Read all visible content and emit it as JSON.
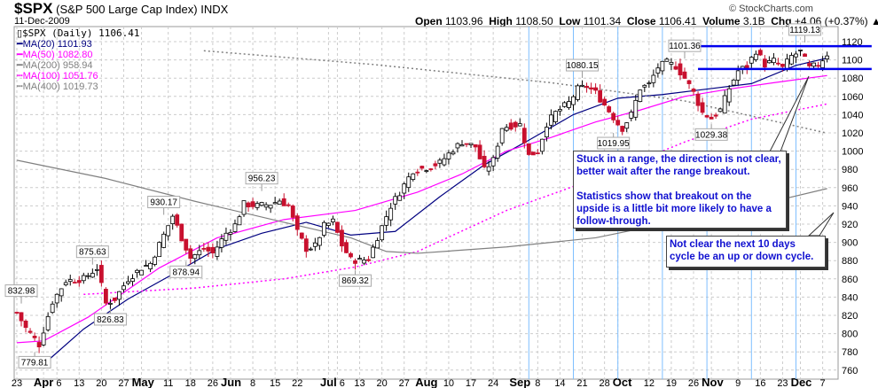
{
  "header": {
    "symbol": "$SPX",
    "name": "(S&P 500 Large Cap Index)",
    "exchange": "INDX",
    "date": "11-Dec-2009",
    "brand": "© StockCharts.com",
    "open_label": "Open",
    "open": "1103.96",
    "high_label": "High",
    "high": "1108.50",
    "low_label": "Low",
    "low": "1101.34",
    "close_label": "Close",
    "close": "1106.41",
    "volume_label": "Volume",
    "volume": "3.1B",
    "chg_label": "Chg",
    "chg": "+4.06 (+0.37%)",
    "chg_arrow": "▲"
  },
  "legend": [
    {
      "label": "$SPX (Daily) 1106.41",
      "color": "#000000"
    },
    {
      "label": "MA(20) 1101.93",
      "color": "#000080"
    },
    {
      "label": "MA(50) 1082.80",
      "color": "#ff00ff"
    },
    {
      "label": "MA(200) 958.94",
      "color": "#808080"
    },
    {
      "label": "MA(100) 1051.76",
      "color": "#ff00ff"
    },
    {
      "label": "MA(400) 1019.73",
      "color": "#808080"
    }
  ],
  "notes": {
    "range": [
      "Stuck in a range, the direction is not clear,",
      "better wait after the range breakout.",
      "",
      "Statistics show that breakout on the",
      "upside is a little bit more likely to have a",
      "follow-through."
    ],
    "cycle": [
      "Not clear the next 10 days",
      "cycle be an up or down cycle."
    ]
  },
  "chart_data": {
    "type": "candlestick",
    "title": "$SPX (Daily)",
    "ylim": [
      750,
      1130
    ],
    "yticks": [
      760,
      780,
      800,
      820,
      840,
      860,
      880,
      900,
      920,
      940,
      960,
      980,
      1000,
      1020,
      1040,
      1060,
      1080,
      1100,
      1120
    ],
    "xticks": [
      [
        0,
        "23",
        false
      ],
      [
        6,
        "Apr",
        true
      ],
      [
        9,
        "6",
        false
      ],
      [
        14,
        "13",
        false
      ],
      [
        19,
        "20",
        false
      ],
      [
        24,
        "27",
        false
      ],
      [
        28,
        "May",
        true
      ],
      [
        34,
        "11",
        false
      ],
      [
        39,
        "18",
        false
      ],
      [
        44,
        "26",
        false
      ],
      [
        48,
        "Jun",
        true
      ],
      [
        53,
        "8",
        false
      ],
      [
        58,
        "15",
        false
      ],
      [
        63,
        "22",
        false
      ],
      [
        70,
        "Jul",
        true
      ],
      [
        72,
        "6",
        false
      ],
      [
        77,
        "13",
        false
      ],
      [
        82,
        "20",
        false
      ],
      [
        87,
        "27",
        false
      ],
      [
        92,
        "Aug",
        true
      ],
      [
        97,
        "10",
        false
      ],
      [
        102,
        "17",
        false
      ],
      [
        107,
        "24",
        false
      ],
      [
        113,
        "Sep",
        true
      ],
      [
        117,
        "8",
        false
      ],
      [
        122,
        "14",
        false
      ],
      [
        127,
        "21",
        false
      ],
      [
        132,
        "28",
        false
      ],
      [
        135,
        "Oct",
        true
      ],
      [
        142,
        "12",
        false
      ],
      [
        147,
        "19",
        false
      ],
      [
        152,
        "26",
        false
      ],
      [
        156,
        "Nov",
        true
      ],
      [
        162,
        "9",
        false
      ],
      [
        167,
        "16",
        false
      ],
      [
        172,
        "23",
        false
      ],
      [
        176,
        "Dec",
        true
      ],
      [
        181,
        "7",
        false
      ]
    ],
    "close_anchors": [
      [
        0,
        823
      ],
      [
        2,
        806
      ],
      [
        5,
        788
      ],
      [
        8,
        835
      ],
      [
        11,
        858
      ],
      [
        15,
        860
      ],
      [
        18,
        872
      ],
      [
        20,
        833
      ],
      [
        22,
        838
      ],
      [
        25,
        860
      ],
      [
        28,
        872
      ],
      [
        30,
        877
      ],
      [
        33,
        908
      ],
      [
        35,
        929
      ],
      [
        37,
        905
      ],
      [
        39,
        883
      ],
      [
        42,
        893
      ],
      [
        44,
        888
      ],
      [
        47,
        910
      ],
      [
        49,
        919
      ],
      [
        51,
        942
      ],
      [
        54,
        940
      ],
      [
        57,
        942
      ],
      [
        59,
        946
      ],
      [
        61,
        940
      ],
      [
        63,
        911
      ],
      [
        65,
        893
      ],
      [
        67,
        896
      ],
      [
        69,
        918
      ],
      [
        71,
        923
      ],
      [
        73,
        897
      ],
      [
        75,
        881
      ],
      [
        77,
        880
      ],
      [
        79,
        882
      ],
      [
        81,
        906
      ],
      [
        84,
        940
      ],
      [
        86,
        955
      ],
      [
        89,
        979
      ],
      [
        92,
        982
      ],
      [
        95,
        987
      ],
      [
        98,
        1002
      ],
      [
        100,
        1010
      ],
      [
        103,
        1005
      ],
      [
        105,
        979
      ],
      [
        107,
        990
      ],
      [
        109,
        1026
      ],
      [
        111,
        1028
      ],
      [
        113,
        1029
      ],
      [
        115,
        995
      ],
      [
        117,
        1000
      ],
      [
        119,
        1030
      ],
      [
        121,
        1042
      ],
      [
        124,
        1053
      ],
      [
        126,
        1068
      ],
      [
        128,
        1071
      ],
      [
        130,
        1064
      ],
      [
        133,
        1044
      ],
      [
        135,
        1030
      ],
      [
        136,
        1025
      ],
      [
        138,
        1040
      ],
      [
        140,
        1069
      ],
      [
        142,
        1073
      ],
      [
        144,
        1092
      ],
      [
        146,
        1097
      ],
      [
        148,
        1093
      ],
      [
        150,
        1080
      ],
      [
        152,
        1064
      ],
      [
        154,
        1042
      ],
      [
        156,
        1036
      ],
      [
        158,
        1045
      ],
      [
        160,
        1069
      ],
      [
        162,
        1088
      ],
      [
        164,
        1093
      ],
      [
        166,
        1110
      ],
      [
        168,
        1095
      ],
      [
        170,
        1099
      ],
      [
        172,
        1091
      ],
      [
        174,
        1104
      ],
      [
        176,
        1109
      ],
      [
        178,
        1091
      ],
      [
        180,
        1095
      ],
      [
        182,
        1106.41
      ]
    ],
    "series": [
      {
        "name": "MA(20)",
        "color": "#000080",
        "dash": false,
        "points": [
          [
            5,
            762
          ],
          [
            15,
            805
          ],
          [
            25,
            838
          ],
          [
            35,
            865
          ],
          [
            45,
            893
          ],
          [
            55,
            910
          ],
          [
            65,
            922
          ],
          [
            75,
            908
          ],
          [
            85,
            912
          ],
          [
            95,
            950
          ],
          [
            105,
            985
          ],
          [
            115,
            1012
          ],
          [
            125,
            1040
          ],
          [
            135,
            1058
          ],
          [
            145,
            1062
          ],
          [
            155,
            1068
          ],
          [
            165,
            1074
          ],
          [
            175,
            1094
          ],
          [
            182,
            1101.93
          ]
        ]
      },
      {
        "name": "MA(50)",
        "color": "#ff00ff",
        "dash": false,
        "points": [
          [
            0,
            790
          ],
          [
            6,
            792
          ],
          [
            16,
            818
          ],
          [
            32,
            872
          ],
          [
            45,
            905
          ],
          [
            60,
            925
          ],
          [
            76,
            935
          ],
          [
            90,
            955
          ],
          [
            100,
            975
          ],
          [
            110,
            1000
          ],
          [
            120,
            1015
          ],
          [
            130,
            1032
          ],
          [
            140,
            1045
          ],
          [
            150,
            1060
          ],
          [
            160,
            1068
          ],
          [
            170,
            1075
          ],
          [
            182,
            1082.8
          ]
        ]
      },
      {
        "name": "MA(100)",
        "color": "#ff00ff",
        "dash": true,
        "points": [
          [
            15,
            843
          ],
          [
            40,
            850
          ],
          [
            60,
            860
          ],
          [
            76,
            873
          ],
          [
            90,
            890
          ],
          [
            110,
            935
          ],
          [
            130,
            970
          ],
          [
            150,
            1010
          ],
          [
            165,
            1035
          ],
          [
            182,
            1051.76
          ]
        ]
      },
      {
        "name": "MA(200)",
        "color": "#808080",
        "dash": false,
        "points": [
          [
            0,
            990
          ],
          [
            20,
            970
          ],
          [
            40,
            945
          ],
          [
            60,
            922
          ],
          [
            75,
            905
          ],
          [
            83,
            890
          ],
          [
            90,
            888
          ],
          [
            110,
            895
          ],
          [
            130,
            905
          ],
          [
            150,
            925
          ],
          [
            170,
            945
          ],
          [
            182,
            958.94
          ]
        ]
      },
      {
        "name": "MA(400)",
        "color": "#808080",
        "dash": true,
        "points": [
          [
            42,
            1110
          ],
          [
            80,
            1095
          ],
          [
            120,
            1075
          ],
          [
            150,
            1055
          ],
          [
            182,
            1019.73
          ]
        ]
      }
    ],
    "price_labels": [
      [
        1,
        832.98,
        "832.98"
      ],
      [
        4,
        779.81,
        "779.81"
      ],
      [
        17,
        875.63,
        "875.63"
      ],
      [
        21,
        826.83,
        "826.83"
      ],
      [
        33,
        930.17,
        "930.17"
      ],
      [
        38,
        878.94,
        "878.94"
      ],
      [
        55,
        956.23,
        "956.23"
      ],
      [
        76,
        869.32,
        "869.32"
      ],
      [
        127,
        1080.15,
        "1080.15"
      ],
      [
        134,
        1019.95,
        "1019.95"
      ],
      [
        150,
        1101.36,
        "1101.36"
      ],
      [
        156,
        1029.38,
        "1029.38"
      ],
      [
        177,
        1119.13,
        "1119.13"
      ]
    ],
    "cycle_lines": [
      115,
      125,
      135,
      145,
      155,
      165,
      175,
      185
    ],
    "range_lines": [
      [
        1115,
        152,
        192
      ],
      [
        1090,
        153,
        192
      ]
    ]
  }
}
